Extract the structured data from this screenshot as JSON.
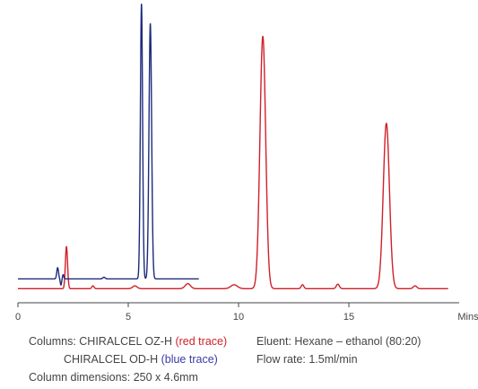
{
  "chart_data": {
    "type": "line",
    "x_axis": {
      "range": [
        0,
        20
      ],
      "ticks": [
        0,
        5,
        10,
        15
      ],
      "tick_labels": [
        "0",
        "5",
        "10",
        "15"
      ],
      "unit_label": "Mins"
    },
    "y_axis": {
      "shown": false,
      "range": [
        0,
        100
      ]
    },
    "grid": false,
    "series": [
      {
        "color": "#d0202a",
        "baseline": 1.5,
        "x_range": [
          0,
          19.5
        ],
        "peaks": [
          {
            "x": 2.2,
            "height": 15,
            "width": 0.05
          },
          {
            "x": 11.1,
            "height": 90,
            "width": 0.13
          },
          {
            "x": 16.7,
            "height": 59,
            "width": 0.14
          }
        ],
        "noise_bumps": [
          {
            "x": 3.4,
            "height": 1.0,
            "width": 0.05
          },
          {
            "x": 5.3,
            "height": 1.0,
            "width": 0.1
          },
          {
            "x": 7.7,
            "height": 1.8,
            "width": 0.12
          },
          {
            "x": 9.8,
            "height": 1.4,
            "width": 0.15
          },
          {
            "x": 12.9,
            "height": 1.4,
            "width": 0.06
          },
          {
            "x": 14.5,
            "height": 1.6,
            "width": 0.07
          },
          {
            "x": 18.0,
            "height": 1.0,
            "width": 0.08
          }
        ]
      },
      {
        "color": "#1c2a7a",
        "baseline": 5,
        "x_range": [
          0,
          8.2
        ],
        "peaks": [
          {
            "x": 1.8,
            "height": 4,
            "width": 0.04
          },
          {
            "x": 5.6,
            "height": 98,
            "width": 0.05
          },
          {
            "x": 6.0,
            "height": 91,
            "width": 0.06
          }
        ],
        "noise_bumps": [
          {
            "x": 1.95,
            "height": -2.2,
            "width": 0.03
          },
          {
            "x": 2.05,
            "height": 1.5,
            "width": 0.03
          },
          {
            "x": 3.9,
            "height": 0.6,
            "width": 0.05
          }
        ]
      }
    ]
  },
  "legend": {
    "columns_label": "Columns: CHIRALCEL OZ-H",
    "red_trace": "(red trace)",
    "column_2": "CHIRALCEL OD-H",
    "blue_trace": "(blue trace)",
    "dimensions": "Column dimensions: 250 x 4.6mm",
    "eluent": "Eluent: Hexane – ethanol (80:20)",
    "flow_rate": "Flow rate: 1.5ml/min"
  },
  "colors": {
    "red_trace": "#d0202a",
    "blue_trace": "#1c2a7a",
    "axis": "#444444"
  }
}
